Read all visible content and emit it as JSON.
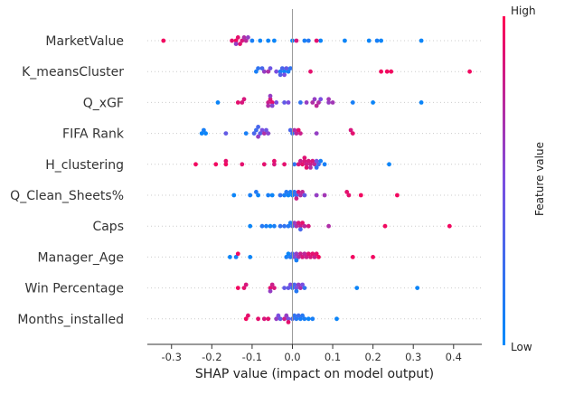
{
  "chart_data": {
    "type": "scatter",
    "subtype": "shap-beeswarm",
    "title": "",
    "xlabel": "SHAP value (impact on model output)",
    "ylabel": "",
    "xlim": [
      -0.36,
      0.47
    ],
    "xticks": [
      "-0.3",
      "-0.2",
      "-0.1",
      "0.0",
      "0.1",
      "0.2",
      "0.3",
      "0.4"
    ],
    "grid": false,
    "zero_line": true,
    "colorbar": {
      "label": "Feature value",
      "high_label": "High",
      "low_label": "Low",
      "low_color": "#008bfb",
      "high_color": "#ff0052"
    },
    "features": [
      {
        "name": "MarketValue",
        "points": [
          [
            -0.32,
            0.95
          ],
          [
            -0.14,
            0.95
          ],
          [
            -0.135,
            0.9
          ],
          [
            -0.125,
            0.85
          ],
          [
            -0.115,
            0.75
          ],
          [
            -0.11,
            0.6
          ],
          [
            -0.1,
            0.1
          ],
          [
            -0.08,
            0.05
          ],
          [
            -0.06,
            0.05
          ],
          [
            -0.045,
            0.05
          ],
          [
            -0.13,
            0.9
          ],
          [
            -0.12,
            0.7
          ],
          [
            0.0,
            0.05
          ],
          [
            0.03,
            0.1
          ],
          [
            0.07,
            0.05
          ],
          [
            0.01,
            0.85
          ],
          [
            0.06,
            0.9
          ],
          [
            0.13,
            0.05
          ],
          [
            0.19,
            0.05
          ],
          [
            0.21,
            0.1
          ],
          [
            0.22,
            0.05
          ],
          [
            0.32,
            0.05
          ],
          [
            -0.15,
            0.9
          ],
          [
            -0.14,
            0.6
          ],
          [
            0.04,
            0.15
          ]
        ]
      },
      {
        "name": "K_meansCluster",
        "points": [
          [
            -0.09,
            0.1
          ],
          [
            -0.07,
            0.6
          ],
          [
            -0.06,
            0.7
          ],
          [
            -0.075,
            0.3
          ],
          [
            -0.055,
            0.45
          ],
          [
            -0.04,
            0.5
          ],
          [
            -0.03,
            0.1
          ],
          [
            -0.02,
            0.05
          ],
          [
            -0.01,
            0.1
          ],
          [
            -0.025,
            0.3
          ],
          [
            -0.015,
            0.4
          ],
          [
            -0.02,
            0.5
          ],
          [
            -0.005,
            0.2
          ],
          [
            0.045,
            0.9
          ],
          [
            0.22,
            0.95
          ],
          [
            0.235,
            0.95
          ],
          [
            0.245,
            0.95
          ],
          [
            0.44,
            0.95
          ],
          [
            -0.085,
            0.2
          ],
          [
            -0.03,
            0.35
          ]
        ]
      },
      {
        "name": "Q_xGF",
        "points": [
          [
            -0.185,
            0.05
          ],
          [
            -0.135,
            0.9
          ],
          [
            -0.125,
            0.85
          ],
          [
            -0.12,
            0.85
          ],
          [
            -0.06,
            0.8
          ],
          [
            -0.055,
            0.85
          ],
          [
            -0.05,
            0.9
          ],
          [
            -0.06,
            0.7
          ],
          [
            -0.055,
            0.6
          ],
          [
            -0.05,
            0.55
          ],
          [
            -0.04,
            0.5
          ],
          [
            -0.01,
            0.5
          ],
          [
            0.02,
            0.2
          ],
          [
            0.035,
            0.6
          ],
          [
            0.05,
            0.7
          ],
          [
            0.055,
            0.6
          ],
          [
            0.065,
            0.7
          ],
          [
            0.07,
            0.5
          ],
          [
            0.09,
            0.6
          ],
          [
            0.09,
            0.65
          ],
          [
            0.15,
            0.1
          ],
          [
            0.2,
            0.05
          ],
          [
            0.32,
            0.05
          ],
          [
            -0.02,
            0.4
          ],
          [
            0.06,
            0.75
          ],
          [
            0.1,
            0.65
          ]
        ]
      },
      {
        "name": "FIFA Rank",
        "points": [
          [
            -0.225,
            0.05
          ],
          [
            -0.22,
            0.1
          ],
          [
            -0.215,
            0.05
          ],
          [
            -0.165,
            0.4
          ],
          [
            -0.115,
            0.1
          ],
          [
            -0.095,
            0.3
          ],
          [
            -0.09,
            0.25
          ],
          [
            -0.08,
            0.35
          ],
          [
            -0.075,
            0.5
          ],
          [
            -0.07,
            0.7
          ],
          [
            -0.065,
            0.45
          ],
          [
            -0.06,
            0.55
          ],
          [
            -0.085,
            0.6
          ],
          [
            -0.085,
            0.3
          ],
          [
            0.0,
            0.2
          ],
          [
            0.005,
            0.7
          ],
          [
            0.01,
            0.75
          ],
          [
            0.02,
            0.8
          ],
          [
            0.06,
            0.6
          ],
          [
            0.15,
            0.9
          ],
          [
            0.145,
            0.85
          ],
          [
            0.015,
            0.9
          ],
          [
            -0.005,
            0.3
          ]
        ]
      },
      {
        "name": "H_clustering",
        "points": [
          [
            -0.24,
            0.95
          ],
          [
            -0.19,
            0.95
          ],
          [
            -0.165,
            0.95
          ],
          [
            -0.165,
            0.9
          ],
          [
            -0.125,
            0.9
          ],
          [
            -0.07,
            0.9
          ],
          [
            -0.045,
            0.85
          ],
          [
            -0.045,
            0.9
          ],
          [
            -0.02,
            0.9
          ],
          [
            0.005,
            0.2
          ],
          [
            0.015,
            0.85
          ],
          [
            0.02,
            0.8
          ],
          [
            0.025,
            0.9
          ],
          [
            0.03,
            0.85
          ],
          [
            0.035,
            0.8
          ],
          [
            0.04,
            0.85
          ],
          [
            0.045,
            0.8
          ],
          [
            0.05,
            0.85
          ],
          [
            0.055,
            0.75
          ],
          [
            0.06,
            0.5
          ],
          [
            0.065,
            0.3
          ],
          [
            0.07,
            0.1
          ],
          [
            0.08,
            0.1
          ],
          [
            0.24,
            0.05
          ],
          [
            0.035,
            0.9
          ],
          [
            0.045,
            0.7
          ],
          [
            0.06,
            0.2
          ],
          [
            0.03,
            0.88
          ]
        ]
      },
      {
        "name": "Q_Clean_Sheets%",
        "points": [
          [
            -0.145,
            0.05
          ],
          [
            -0.105,
            0.1
          ],
          [
            -0.085,
            0.05
          ],
          [
            -0.06,
            0.1
          ],
          [
            -0.05,
            0.05
          ],
          [
            -0.03,
            0.2
          ],
          [
            -0.02,
            0.1
          ],
          [
            -0.01,
            0.05
          ],
          [
            -0.005,
            0.1
          ],
          [
            0.0,
            0.05
          ],
          [
            -0.015,
            0.15
          ],
          [
            0.005,
            0.2
          ],
          [
            0.01,
            0.3
          ],
          [
            0.015,
            0.85
          ],
          [
            0.02,
            0.7
          ],
          [
            0.025,
            0.75
          ],
          [
            0.03,
            0.4
          ],
          [
            0.06,
            0.6
          ],
          [
            0.08,
            0.65
          ],
          [
            0.14,
            0.9
          ],
          [
            0.135,
            0.9
          ],
          [
            0.17,
            0.95
          ],
          [
            0.26,
            0.95
          ],
          [
            -0.09,
            0.15
          ],
          [
            0.01,
            0.8
          ]
        ]
      },
      {
        "name": "Caps",
        "points": [
          [
            -0.105,
            0.05
          ],
          [
            -0.075,
            0.15
          ],
          [
            -0.065,
            0.1
          ],
          [
            -0.055,
            0.05
          ],
          [
            -0.045,
            0.1
          ],
          [
            -0.02,
            0.2
          ],
          [
            -0.01,
            0.15
          ],
          [
            -0.005,
            0.1
          ],
          [
            0.0,
            0.3
          ],
          [
            0.005,
            0.6
          ],
          [
            0.01,
            0.7
          ],
          [
            0.015,
            0.85
          ],
          [
            0.02,
            0.8
          ],
          [
            0.025,
            0.9
          ],
          [
            0.03,
            0.75
          ],
          [
            0.04,
            0.85
          ],
          [
            0.09,
            0.7
          ],
          [
            0.23,
            0.95
          ],
          [
            0.39,
            0.95
          ],
          [
            -0.03,
            0.2
          ],
          [
            0.02,
            0.3
          ]
        ]
      },
      {
        "name": "Manager_Age",
        "points": [
          [
            -0.155,
            0.05
          ],
          [
            -0.14,
            0.1
          ],
          [
            -0.135,
            0.95
          ],
          [
            -0.105,
            0.05
          ],
          [
            -0.015,
            0.1
          ],
          [
            -0.01,
            0.05
          ],
          [
            -0.005,
            0.15
          ],
          [
            0.0,
            0.3
          ],
          [
            0.005,
            0.5
          ],
          [
            0.01,
            0.6
          ],
          [
            0.015,
            0.7
          ],
          [
            0.02,
            0.8
          ],
          [
            0.025,
            0.85
          ],
          [
            0.03,
            0.75
          ],
          [
            0.035,
            0.8
          ],
          [
            0.04,
            0.9
          ],
          [
            0.045,
            0.85
          ],
          [
            0.05,
            0.9
          ],
          [
            0.055,
            0.8
          ],
          [
            0.06,
            0.9
          ],
          [
            0.065,
            0.95
          ],
          [
            0.15,
            0.95
          ],
          [
            0.2,
            0.95
          ],
          [
            0.01,
            0.1
          ]
        ]
      },
      {
        "name": "Win Percentage",
        "points": [
          [
            -0.135,
            0.95
          ],
          [
            -0.12,
            0.9
          ],
          [
            -0.115,
            0.85
          ],
          [
            -0.055,
            0.9
          ],
          [
            -0.05,
            0.8
          ],
          [
            -0.045,
            0.85
          ],
          [
            -0.055,
            0.6
          ],
          [
            -0.01,
            0.4
          ],
          [
            -0.005,
            0.5
          ],
          [
            0.0,
            0.2
          ],
          [
            0.005,
            0.3
          ],
          [
            0.01,
            0.5
          ],
          [
            0.015,
            0.6
          ],
          [
            0.02,
            0.7
          ],
          [
            0.025,
            0.5
          ],
          [
            0.03,
            0.2
          ],
          [
            0.16,
            0.05
          ],
          [
            0.31,
            0.05
          ],
          [
            -0.02,
            0.4
          ],
          [
            0.01,
            0.15
          ]
        ]
      },
      {
        "name": "Months_installed",
        "points": [
          [
            -0.115,
            0.95
          ],
          [
            -0.11,
            0.9
          ],
          [
            -0.085,
            0.9
          ],
          [
            -0.07,
            0.85
          ],
          [
            -0.06,
            0.9
          ],
          [
            -0.04,
            0.6
          ],
          [
            -0.035,
            0.5
          ],
          [
            -0.03,
            0.4
          ],
          [
            -0.02,
            0.8
          ],
          [
            -0.015,
            0.6
          ],
          [
            -0.01,
            0.5
          ],
          [
            0.0,
            0.3
          ],
          [
            0.005,
            0.2
          ],
          [
            0.01,
            0.15
          ],
          [
            0.02,
            0.1
          ],
          [
            0.025,
            0.15
          ],
          [
            0.03,
            0.1
          ],
          [
            0.04,
            0.05
          ],
          [
            0.05,
            0.1
          ],
          [
            0.11,
            0.05
          ],
          [
            -0.01,
            0.9
          ],
          [
            0.015,
            0.25
          ]
        ]
      }
    ]
  }
}
